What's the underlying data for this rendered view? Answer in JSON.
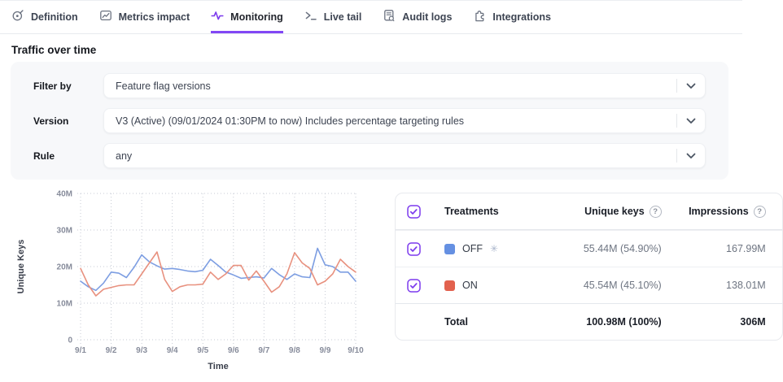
{
  "tab_bar": {
    "tabs": [
      {
        "label": "Definition",
        "icon": "target-pen-icon",
        "active": false
      },
      {
        "label": "Metrics impact",
        "icon": "chart-box-icon",
        "active": false
      },
      {
        "label": "Monitoring",
        "icon": "pulse-icon",
        "active": true
      },
      {
        "label": "Live tail",
        "icon": "terminal-prompt-icon",
        "active": false
      },
      {
        "label": "Audit logs",
        "icon": "document-search-icon",
        "active": false
      },
      {
        "label": "Integrations",
        "icon": "puzzle-icon",
        "active": false
      }
    ]
  },
  "page_title": "Traffic over time",
  "filters": {
    "rows": [
      {
        "label": "Filter by",
        "value": "Feature flag versions"
      },
      {
        "label": "Version",
        "value": "V3 (Active) (09/01/2024 01:30PM to now) Includes percentage targeting rules"
      },
      {
        "label": "Rule",
        "value": "any"
      }
    ]
  },
  "chart_data": {
    "type": "line",
    "title": "",
    "xlabel": "Time",
    "ylabel": "Unique Keys",
    "x_tick_labels": [
      "9/1",
      "9/2",
      "9/3",
      "9/4",
      "9/5",
      "9/6",
      "9/7",
      "9/8",
      "9/9",
      "9/10"
    ],
    "y_tick_labels": [
      "0",
      "10M",
      "20M",
      "30M",
      "40M"
    ],
    "y_tick_values": [
      0,
      10,
      20,
      30,
      40
    ],
    "ylim": [
      0,
      40
    ],
    "xlim": [
      0,
      9
    ],
    "unit": "millions of unique keys",
    "grid": "dotted",
    "legend_position": "table-right",
    "x": [
      0,
      0.25,
      0.5,
      0.75,
      1,
      1.25,
      1.5,
      1.75,
      2,
      2.25,
      2.5,
      2.75,
      3,
      3.25,
      3.5,
      3.75,
      4,
      4.25,
      4.5,
      4.75,
      5,
      5.25,
      5.5,
      5.75,
      6,
      6.25,
      6.5,
      6.75,
      7,
      7.25,
      7.5,
      7.75,
      8,
      8.25,
      8.5,
      8.75,
      9
    ],
    "series": [
      {
        "name": "OFF",
        "color": "#7d9ee2",
        "values": [
          16,
          14.5,
          13.5,
          15.5,
          18.5,
          18.2,
          17,
          19.8,
          23.2,
          21.3,
          20.2,
          19.3,
          19.5,
          19.2,
          18.8,
          18.6,
          19,
          22,
          20.3,
          18.5,
          17.7,
          16.8,
          17,
          17.2,
          16.9,
          19.5,
          17.8,
          16.5,
          18,
          17.2,
          17,
          25,
          20.5,
          20,
          18.5,
          18.5,
          16
        ]
      },
      {
        "name": "ON",
        "color": "#e8917f",
        "values": [
          19.5,
          15,
          12,
          13.8,
          14.3,
          14.8,
          15,
          15,
          18,
          21,
          24,
          16.5,
          13.2,
          14.5,
          15,
          15,
          15.2,
          18.5,
          16.5,
          18,
          20.3,
          20.3,
          16.3,
          18.8,
          16,
          13,
          14.5,
          18,
          23.8,
          21,
          19.5,
          15,
          16,
          18,
          22,
          20,
          18.5
        ]
      }
    ]
  },
  "treatments_table": {
    "header": {
      "treatments": "Treatments",
      "unique_keys": "Unique keys",
      "impressions": "Impressions"
    },
    "rows": [
      {
        "name": "OFF",
        "swatch_color": "#6590e2",
        "default_marker": "✳",
        "unique_keys": "55.44M (54.90%)",
        "impressions": "167.99M",
        "checked": true
      },
      {
        "name": "ON",
        "swatch_color": "#e2614e",
        "unique_keys": "45.54M (45.10%)",
        "impressions": "138.01M",
        "checked": true
      }
    ],
    "total_row": {
      "label": "Total",
      "unique_keys": "100.98M (100%)",
      "impressions": "306M"
    }
  },
  "icons": {
    "help": "?",
    "snowflake_default": "✳"
  },
  "colors": {
    "accent_purple": "#7c3aed",
    "tab_underline": "#8247f5",
    "off_line": "#7d9ee2",
    "on_line": "#e8917f",
    "off_swatch": "#6590e2",
    "on_swatch": "#e2614e",
    "grid": "#c7cbd5",
    "panel_bg": "#f7f8fa"
  }
}
